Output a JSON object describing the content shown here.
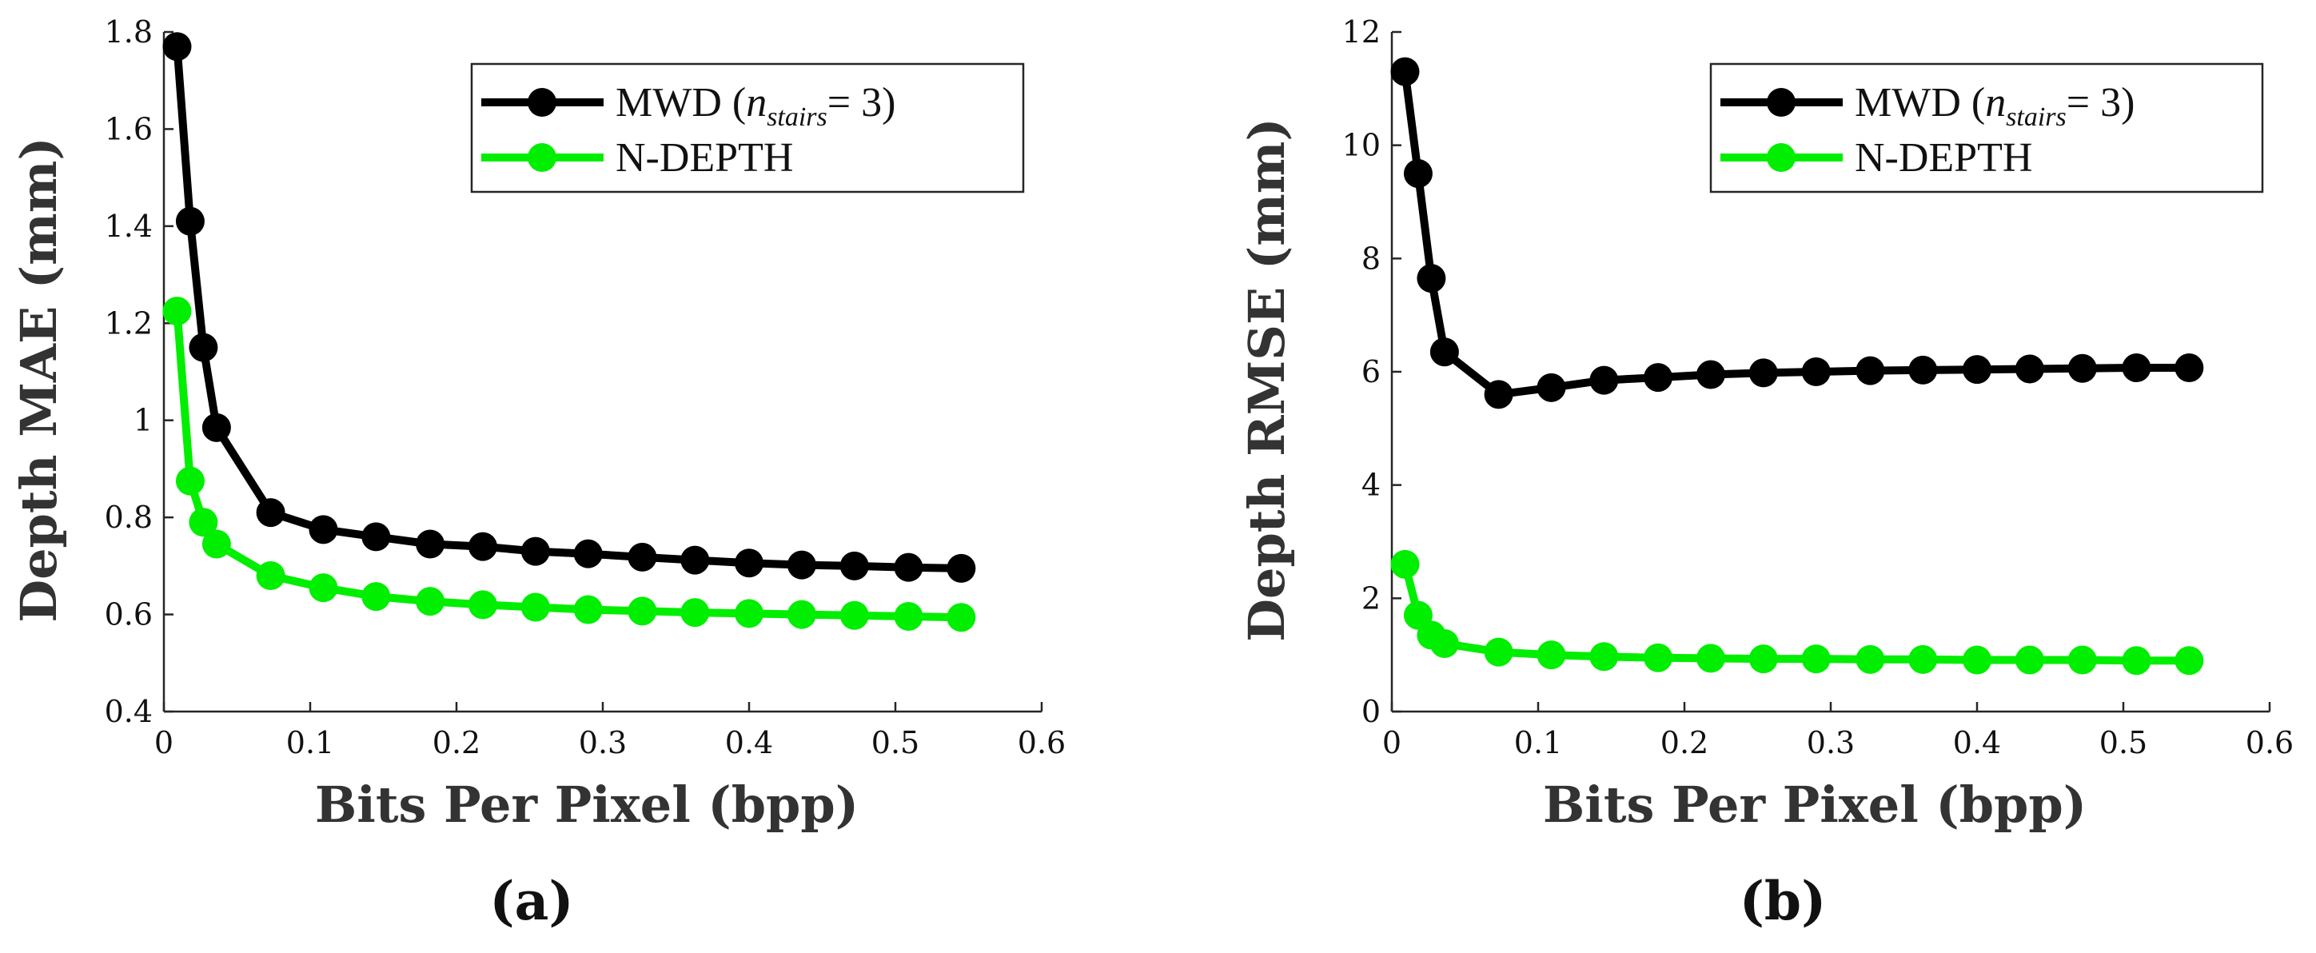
{
  "colors": {
    "series_0": "#000000",
    "series_1": "#00ee00",
    "axis": "#262626",
    "background": "#ffffff"
  },
  "chart_data": [
    {
      "type": "line",
      "panel_label": "(a)",
      "xlabel": "Bits Per Pixel (bpp)",
      "ylabel": "Depth MAE (mm)",
      "xlim": [
        0,
        0.6
      ],
      "ylim": [
        0.4,
        1.8
      ],
      "xticks": [
        0,
        0.1,
        0.2,
        0.3,
        0.4,
        0.5,
        0.6
      ],
      "yticks": [
        0.4,
        0.6,
        0.8,
        1,
        1.2,
        1.4,
        1.6,
        1.8
      ],
      "xtick_labels": [
        "0",
        "0.1",
        "0.2",
        "0.3",
        "0.4",
        "0.5",
        "0.6"
      ],
      "ytick_labels": [
        "0.4",
        "0.6",
        "0.8",
        "1",
        "1.2",
        "1.4",
        "1.6",
        "1.8"
      ],
      "legend": {
        "placement": "top-right",
        "entries": [
          {
            "prefix": "MWD (",
            "n": "n",
            "sub": "stairs",
            "suffix": "= 3)"
          },
          {
            "text": "N-DEPTH"
          }
        ]
      },
      "series": [
        {
          "name": "MWD (n_stairs = 3)",
          "x": [
            0.009,
            0.018,
            0.027,
            0.036,
            0.073,
            0.109,
            0.145,
            0.182,
            0.218,
            0.254,
            0.29,
            0.327,
            0.363,
            0.4,
            0.436,
            0.472,
            0.509,
            0.545
          ],
          "values": [
            1.77,
            1.41,
            1.15,
            0.985,
            0.81,
            0.775,
            0.76,
            0.745,
            0.74,
            0.73,
            0.725,
            0.718,
            0.712,
            0.706,
            0.702,
            0.7,
            0.697,
            0.695
          ]
        },
        {
          "name": "N-DEPTH",
          "x": [
            0.009,
            0.018,
            0.027,
            0.036,
            0.073,
            0.109,
            0.145,
            0.182,
            0.218,
            0.254,
            0.29,
            0.327,
            0.363,
            0.4,
            0.436,
            0.472,
            0.509,
            0.545
          ],
          "values": [
            1.225,
            0.875,
            0.79,
            0.745,
            0.68,
            0.655,
            0.637,
            0.627,
            0.62,
            0.615,
            0.61,
            0.607,
            0.604,
            0.602,
            0.6,
            0.598,
            0.596,
            0.594
          ]
        }
      ]
    },
    {
      "type": "line",
      "panel_label": "(b)",
      "xlabel": "Bits Per Pixel (bpp)",
      "ylabel": "Depth RMSE (mm)",
      "xlim": [
        0,
        0.6
      ],
      "ylim": [
        0,
        12
      ],
      "xticks": [
        0,
        0.1,
        0.2,
        0.3,
        0.4,
        0.5,
        0.6
      ],
      "yticks": [
        0,
        2,
        4,
        6,
        8,
        10,
        12
      ],
      "xtick_labels": [
        "0",
        "0.1",
        "0.2",
        "0.3",
        "0.4",
        "0.5",
        "0.6"
      ],
      "ytick_labels": [
        "0",
        "2",
        "4",
        "6",
        "8",
        "10",
        "12"
      ],
      "legend": {
        "placement": "top-right",
        "entries": [
          {
            "prefix": "MWD (",
            "n": "n",
            "sub": "stairs",
            "suffix": "= 3)"
          },
          {
            "text": "N-DEPTH"
          }
        ]
      },
      "series": [
        {
          "name": "MWD (n_stairs = 3)",
          "x": [
            0.009,
            0.018,
            0.027,
            0.036,
            0.073,
            0.109,
            0.145,
            0.182,
            0.218,
            0.254,
            0.29,
            0.327,
            0.363,
            0.4,
            0.436,
            0.472,
            0.509,
            0.545
          ],
          "values": [
            11.3,
            9.5,
            7.65,
            6.35,
            5.6,
            5.72,
            5.85,
            5.9,
            5.95,
            5.98,
            6.0,
            6.02,
            6.03,
            6.04,
            6.05,
            6.06,
            6.07,
            6.07
          ]
        },
        {
          "name": "N-DEPTH",
          "x": [
            0.009,
            0.018,
            0.027,
            0.036,
            0.073,
            0.109,
            0.145,
            0.182,
            0.218,
            0.254,
            0.29,
            0.327,
            0.363,
            0.4,
            0.436,
            0.472,
            0.509,
            0.545
          ],
          "values": [
            2.6,
            1.7,
            1.35,
            1.2,
            1.05,
            1.0,
            0.97,
            0.95,
            0.94,
            0.93,
            0.93,
            0.92,
            0.92,
            0.91,
            0.91,
            0.91,
            0.9,
            0.9
          ]
        }
      ]
    }
  ]
}
